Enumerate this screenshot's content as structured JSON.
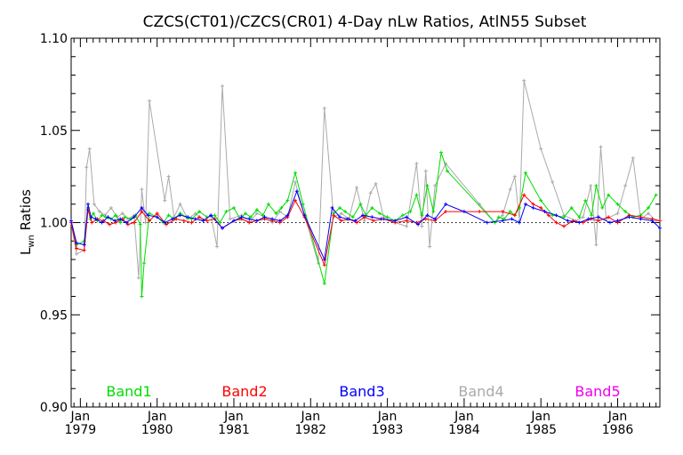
{
  "chart_data": {
    "type": "line",
    "title": "CZCS(CT01)/CZCS(CR01) 4-Day nLw Ratios, AtlN55 Subset",
    "ylabel_main": "L",
    "ylabel_sub": "wn",
    "ylabel_rest": " Ratios",
    "xlabel": "",
    "ylim": [
      0.9,
      1.1
    ],
    "xlim": [
      1978.88,
      1986.55
    ],
    "y_ticks": [
      "0.90",
      "0.95",
      "1.00",
      "1.05",
      "1.10"
    ],
    "x_ticks": [
      {
        "month": "Jan",
        "year": "1979"
      },
      {
        "month": "Jan",
        "year": "1980"
      },
      {
        "month": "Jan",
        "year": "1981"
      },
      {
        "month": "Jan",
        "year": "1982"
      },
      {
        "month": "Jan",
        "year": "1983"
      },
      {
        "month": "Jan",
        "year": "1984"
      },
      {
        "month": "Jan",
        "year": "1985"
      },
      {
        "month": "Jan",
        "year": "1986"
      }
    ],
    "reference_line": 1.0,
    "grid": false,
    "legend_position": "bottom",
    "series": [
      {
        "name": "Band1",
        "color": "#00dd00",
        "x": [
          1978.88,
          1978.95,
          1979.05,
          1979.1,
          1979.13,
          1979.17,
          1979.22,
          1979.28,
          1979.33,
          1979.4,
          1979.46,
          1979.52,
          1979.58,
          1979.66,
          1979.72,
          1979.78,
          1979.8,
          1979.83,
          1979.9,
          1980.0,
          1980.08,
          1980.15,
          1980.22,
          1980.3,
          1980.38,
          1980.45,
          1980.55,
          1980.65,
          1980.75,
          1980.82,
          1980.9,
          1981.0,
          1981.08,
          1981.15,
          1981.22,
          1981.3,
          1981.38,
          1981.45,
          1981.55,
          1981.62,
          1981.7,
          1981.8,
          1981.9,
          1982.18,
          1982.3,
          1982.38,
          1982.45,
          1982.55,
          1982.65,
          1982.72,
          1982.8,
          1982.9,
          1983.0,
          1983.1,
          1983.2,
          1983.3,
          1983.38,
          1983.45,
          1983.52,
          1983.6,
          1983.7,
          1983.78,
          1984.4,
          1984.45,
          1984.52,
          1984.6,
          1984.66,
          1984.72,
          1984.8,
          1985.0,
          1985.15,
          1985.3,
          1985.4,
          1985.5,
          1985.58,
          1985.66,
          1985.72,
          1985.8,
          1985.88,
          1986.0,
          1986.1,
          1986.2,
          1986.3,
          1986.4,
          1986.5
        ],
        "y": [
          1.0,
          0.988,
          0.99,
          1.008,
          1.002,
          1.005,
          1.001,
          1.004,
          1.003,
          1.002,
          1.004,
          1.0,
          1.003,
          1.002,
          1.004,
          0.999,
          0.96,
          0.978,
          1.005,
          1.003,
          1.0,
          1.004,
          1.002,
          1.005,
          1.003,
          1.002,
          1.006,
          1.003,
          1.004,
          1.0,
          1.006,
          1.008,
          1.002,
          1.005,
          1.003,
          1.007,
          1.004,
          1.01,
          1.005,
          1.008,
          1.012,
          1.027,
          1.01,
          0.967,
          1.005,
          1.008,
          1.006,
          1.003,
          1.01,
          1.004,
          1.008,
          1.005,
          1.003,
          1.001,
          1.004,
          1.006,
          1.015,
          1.004,
          1.02,
          1.006,
          1.038,
          1.028,
          1.0,
          1.003,
          1.002,
          1.006,
          1.004,
          1.008,
          1.027,
          1.012,
          1.004,
          1.003,
          1.008,
          1.003,
          1.012,
          1.004,
          1.02,
          1.008,
          1.015,
          1.01,
          1.006,
          1.003,
          1.004,
          1.008,
          1.015
        ]
      },
      {
        "name": "Band2",
        "color": "#ff0000",
        "x": [
          1978.88,
          1978.95,
          1979.05,
          1979.1,
          1979.15,
          1979.22,
          1979.3,
          1979.38,
          1979.46,
          1979.55,
          1979.62,
          1979.7,
          1979.8,
          1979.9,
          1980.0,
          1980.12,
          1980.25,
          1980.35,
          1980.45,
          1980.55,
          1980.65,
          1980.75,
          1980.85,
          1981.0,
          1981.1,
          1981.2,
          1981.3,
          1981.4,
          1981.5,
          1981.6,
          1981.7,
          1981.8,
          1981.92,
          1982.18,
          1982.3,
          1982.4,
          1982.5,
          1982.6,
          1982.7,
          1982.82,
          1982.95,
          1983.1,
          1983.25,
          1983.38,
          1983.5,
          1983.62,
          1983.76,
          1984.2,
          1984.5,
          1984.66,
          1984.78,
          1984.9,
          1985.0,
          1985.1,
          1985.2,
          1985.3,
          1985.42,
          1985.55,
          1985.65,
          1985.75,
          1985.88,
          1986.0,
          1986.15,
          1986.3,
          1986.45,
          1986.55
        ],
        "y": [
          1.0,
          0.986,
          0.985,
          1.007,
          1.0,
          1.002,
          1.001,
          0.999,
          1.0,
          1.002,
          0.999,
          1.0,
          1.006,
          1.001,
          1.005,
          0.999,
          1.002,
          1.001,
          1.0,
          1.003,
          1.001,
          1.002,
          0.997,
          1.001,
          1.002,
          1.0,
          1.001,
          1.002,
          1.001,
          1.0,
          1.003,
          1.012,
          1.003,
          0.977,
          1.004,
          1.001,
          1.002,
          1.0,
          1.003,
          1.001,
          1.002,
          1.0,
          1.001,
          1.0,
          1.002,
          1.001,
          1.006,
          1.006,
          1.006,
          1.004,
          1.015,
          1.01,
          1.008,
          1.004,
          1.0,
          0.998,
          1.001,
          1.0,
          1.002,
          1.001,
          1.003,
          1.0,
          1.004,
          1.003,
          1.002,
          1.001
        ]
      },
      {
        "name": "Band3",
        "color": "#0000ff",
        "x": [
          1978.88,
          1978.95,
          1979.05,
          1979.1,
          1979.14,
          1979.2,
          1979.28,
          1979.36,
          1979.45,
          1979.52,
          1979.6,
          1979.7,
          1979.8,
          1979.88,
          1980.0,
          1980.1,
          1980.2,
          1980.3,
          1980.4,
          1980.5,
          1980.6,
          1980.7,
          1980.85,
          1981.0,
          1981.1,
          1981.2,
          1981.3,
          1981.4,
          1981.5,
          1981.6,
          1981.7,
          1981.82,
          1981.92,
          1982.18,
          1982.28,
          1982.38,
          1982.48,
          1982.58,
          1982.68,
          1982.8,
          1982.92,
          1983.1,
          1983.25,
          1983.4,
          1983.52,
          1983.62,
          1983.76,
          1984.0,
          1984.3,
          1984.5,
          1984.62,
          1984.72,
          1984.8,
          1984.9,
          1985.05,
          1985.2,
          1985.35,
          1985.5,
          1985.62,
          1985.75,
          1985.9,
          1986.0,
          1986.15,
          1986.3,
          1986.45,
          1986.55
        ],
        "y": [
          1.001,
          0.989,
          0.988,
          1.01,
          1.003,
          1.002,
          1.0,
          1.003,
          1.001,
          1.002,
          1.0,
          1.003,
          1.008,
          1.004,
          1.003,
          1.0,
          1.002,
          1.004,
          1.003,
          1.002,
          1.001,
          1.004,
          0.997,
          1.001,
          1.003,
          1.002,
          1.001,
          1.003,
          1.002,
          1.001,
          1.004,
          1.017,
          1.004,
          0.98,
          1.008,
          1.003,
          1.002,
          1.001,
          1.004,
          1.003,
          1.002,
          1.001,
          1.003,
          0.999,
          1.004,
          1.002,
          1.01,
          1.006,
          1.0,
          1.001,
          1.002,
          1.0,
          1.01,
          1.008,
          1.006,
          1.004,
          1.001,
          1.0,
          1.002,
          1.003,
          1.0,
          1.001,
          1.003,
          1.002,
          1.001,
          0.997
        ]
      },
      {
        "name": "Band4",
        "color": "#aaaaaa",
        "x": [
          1978.88,
          1978.95,
          1979.05,
          1979.08,
          1979.12,
          1979.18,
          1979.25,
          1979.32,
          1979.4,
          1979.48,
          1979.55,
          1979.62,
          1979.7,
          1979.76,
          1979.8,
          1979.85,
          1979.9,
          1980.1,
          1980.15,
          1980.22,
          1980.3,
          1980.4,
          1980.5,
          1980.6,
          1980.7,
          1980.78,
          1980.85,
          1980.95,
          1981.1,
          1981.2,
          1981.3,
          1981.4,
          1981.5,
          1981.6,
          1981.7,
          1981.8,
          1981.92,
          1982.1,
          1982.18,
          1982.3,
          1982.4,
          1982.5,
          1982.6,
          1982.7,
          1982.78,
          1982.85,
          1982.95,
          1983.1,
          1983.25,
          1983.38,
          1983.45,
          1983.5,
          1983.55,
          1983.62,
          1983.76,
          1984.2,
          1984.4,
          1984.5,
          1984.6,
          1984.66,
          1984.72,
          1984.78,
          1985.0,
          1985.15,
          1985.3,
          1985.45,
          1985.55,
          1985.65,
          1985.72,
          1985.78,
          1985.85,
          1986.0,
          1986.1,
          1986.2,
          1986.3,
          1986.4,
          1986.5
        ],
        "y": [
          1.0,
          0.983,
          0.985,
          1.03,
          1.04,
          1.01,
          1.006,
          1.004,
          1.008,
          1.003,
          1.005,
          1.002,
          1.004,
          0.97,
          1.018,
          1.0,
          1.066,
          1.012,
          1.025,
          1.003,
          1.01,
          1.002,
          1.005,
          1.001,
          1.004,
          0.987,
          1.074,
          1.002,
          1.004,
          1.0,
          1.005,
          1.003,
          1.0,
          1.006,
          1.003,
          1.022,
          1.004,
          0.978,
          1.062,
          1.003,
          1.005,
          1.002,
          1.019,
          1.001,
          1.016,
          1.021,
          1.003,
          1.0,
          0.998,
          1.032,
          0.998,
          1.028,
          0.987,
          1.02,
          1.032,
          1.01,
          1.0,
          1.004,
          1.018,
          1.025,
          1.001,
          1.077,
          1.04,
          1.022,
          1.004,
          1.001,
          1.003,
          1.02,
          0.988,
          1.041,
          1.002,
          1.005,
          1.02,
          1.035,
          1.002,
          1.005,
          1.001
        ]
      },
      {
        "name": "Band5",
        "color": "#ee00ee",
        "x": [],
        "y": []
      }
    ]
  }
}
